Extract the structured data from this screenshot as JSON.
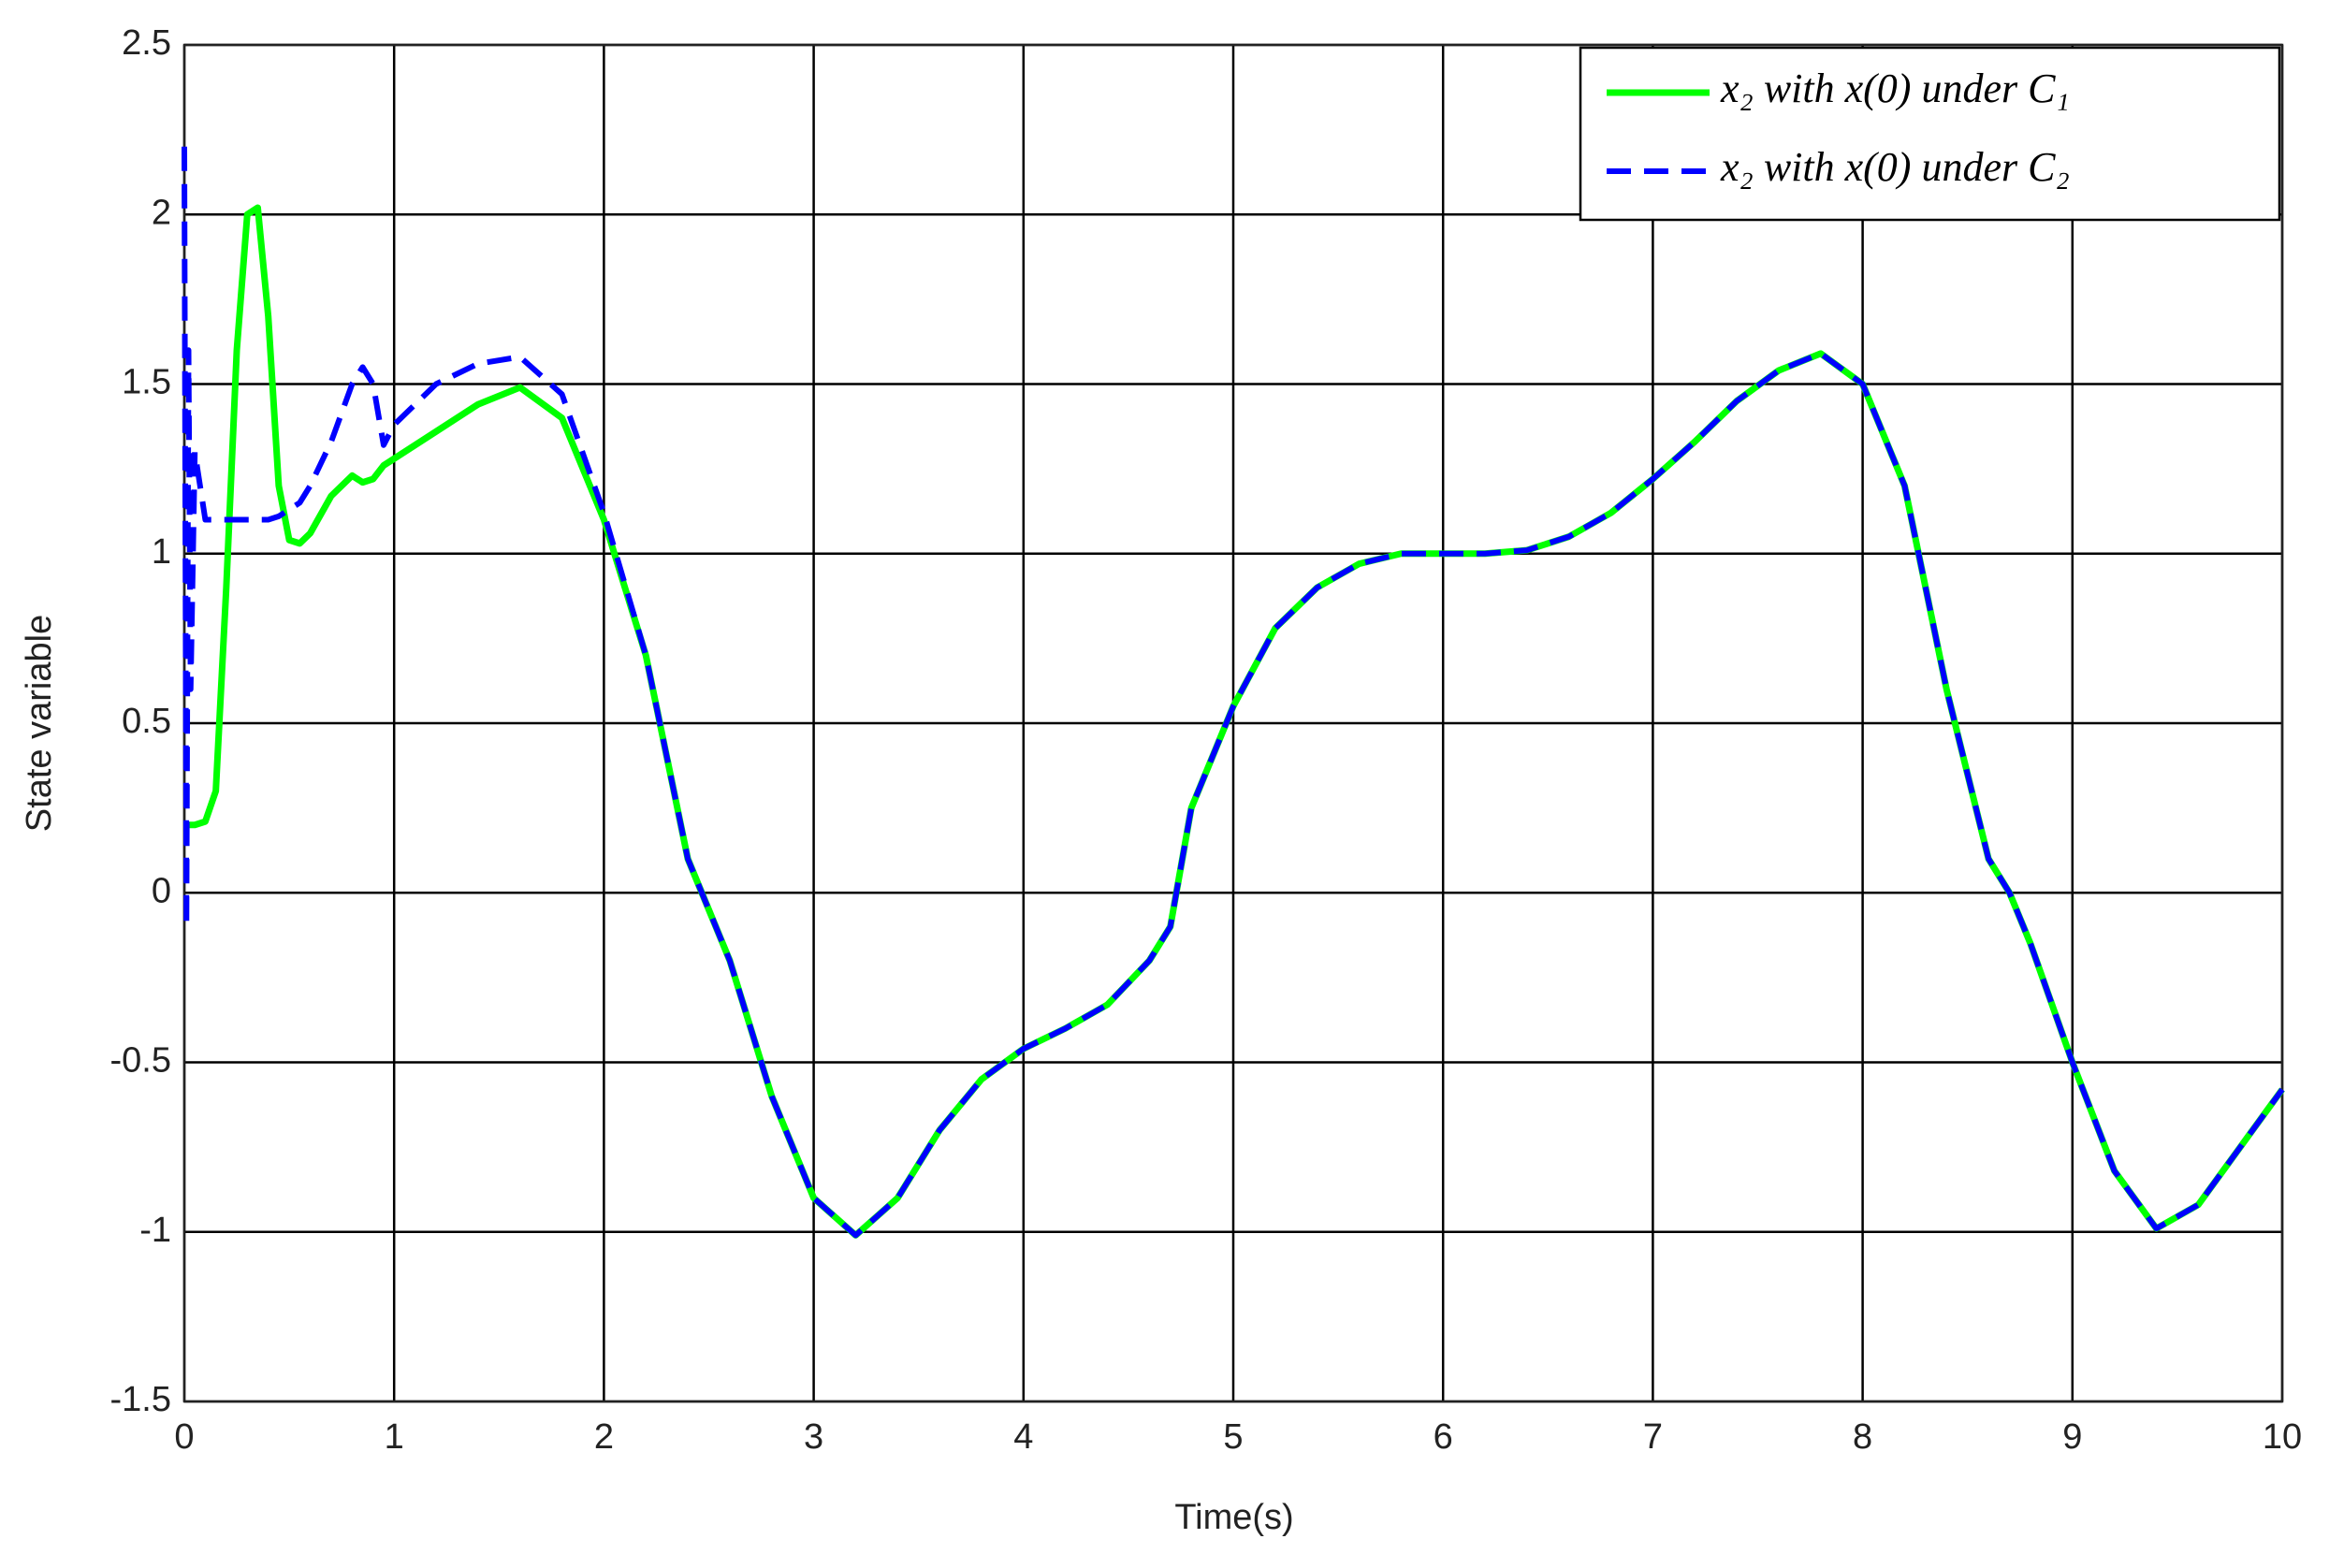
{
  "chart_data": {
    "type": "line",
    "xlabel": "Time(s)",
    "ylabel": "State variable",
    "x": [
      0,
      0.01,
      0.02,
      0.03,
      0.05,
      0.1,
      0.15,
      0.2,
      0.25,
      0.3,
      0.35,
      0.4,
      0.45,
      0.5,
      0.55,
      0.6,
      0.7,
      0.8,
      0.85,
      0.9,
      0.95,
      1.0,
      1.2,
      1.4,
      1.6,
      1.8,
      2.0,
      2.2,
      2.4,
      2.5,
      2.6,
      2.8,
      3.0,
      3.2,
      3.4,
      3.6,
      3.8,
      4.0,
      4.2,
      4.4,
      4.6,
      4.7,
      4.8,
      5.0,
      5.2,
      5.4,
      5.6,
      5.8,
      6.0,
      6.2,
      6.4,
      6.6,
      6.8,
      7.0,
      7.2,
      7.4,
      7.6,
      7.8,
      8.0,
      8.2,
      8.4,
      8.6,
      8.7,
      8.8,
      9.0,
      9.2,
      9.4,
      9.6,
      9.8,
      10.0
    ],
    "series": [
      {
        "name": "x₂ with x(0) under C₁",
        "color": "#00ff00",
        "dashed": false,
        "values": [
          0.2,
          0.2,
          0.2,
          0.2,
          0.2,
          0.21,
          0.3,
          0.9,
          1.6,
          2.0,
          2.02,
          1.7,
          1.2,
          1.04,
          1.03,
          1.06,
          1.17,
          1.23,
          1.21,
          1.22,
          1.26,
          1.28,
          1.36,
          1.44,
          1.49,
          1.4,
          1.1,
          0.7,
          0.1,
          -0.05,
          -0.2,
          -0.6,
          -0.9,
          -1.01,
          -0.9,
          -0.7,
          -0.55,
          -0.46,
          -0.4,
          -0.33,
          -0.2,
          -0.1,
          0.25,
          0.55,
          0.78,
          0.9,
          0.97,
          1.0,
          1.0,
          1.0,
          1.01,
          1.05,
          1.12,
          1.22,
          1.33,
          1.45,
          1.54,
          1.59,
          1.5,
          1.2,
          0.6,
          0.1,
          0.0,
          -0.15,
          -0.5,
          -0.82,
          -0.99,
          -0.92,
          -0.75,
          -0.58
        ]
      },
      {
        "name": "x₂ with x(0) under C₂",
        "color": "#0000ff",
        "dashed": true,
        "values": [
          2.2,
          -0.1,
          1.6,
          0.6,
          1.3,
          1.1,
          1.1,
          1.1,
          1.1,
          1.1,
          1.1,
          1.1,
          1.11,
          1.13,
          1.15,
          1.2,
          1.33,
          1.5,
          1.55,
          1.5,
          1.32,
          1.38,
          1.5,
          1.56,
          1.58,
          1.47,
          1.12,
          0.7,
          0.1,
          -0.05,
          -0.2,
          -0.6,
          -0.9,
          -1.01,
          -0.9,
          -0.7,
          -0.55,
          -0.46,
          -0.4,
          -0.33,
          -0.2,
          -0.1,
          0.25,
          0.55,
          0.78,
          0.9,
          0.97,
          1.0,
          1.0,
          1.0,
          1.01,
          1.05,
          1.12,
          1.22,
          1.33,
          1.45,
          1.54,
          1.59,
          1.5,
          1.2,
          0.6,
          0.1,
          0.0,
          -0.15,
          -0.5,
          -0.82,
          -0.99,
          -0.92,
          -0.75,
          -0.58
        ]
      }
    ],
    "xlim": [
      0,
      10
    ],
    "ylim": [
      -1.5,
      2.5
    ],
    "xticks": [
      0,
      1,
      2,
      3,
      4,
      5,
      6,
      7,
      8,
      9,
      10
    ],
    "yticks": [
      -1.5,
      -1,
      -0.5,
      0,
      0.5,
      1,
      1.5,
      2,
      2.5
    ],
    "grid": true,
    "legend": "upper right"
  }
}
